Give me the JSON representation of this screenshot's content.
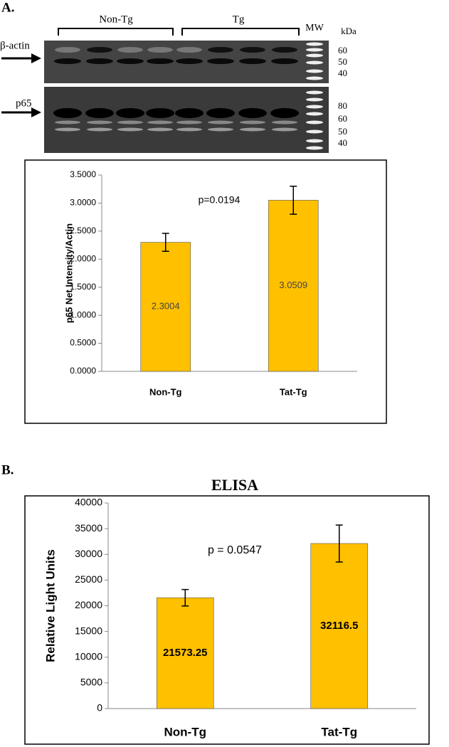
{
  "panels": {
    "a": "A.",
    "b": "B."
  },
  "blot": {
    "groups": [
      "Non-Tg",
      "Tg"
    ],
    "mw_label": "MW",
    "unit": "kDa",
    "rows": [
      {
        "label": "β-actin",
        "markers": [
          "60",
          "50",
          "40"
        ]
      },
      {
        "label": "p65",
        "markers": [
          "80",
          "60",
          "50",
          "40"
        ]
      }
    ]
  },
  "chart_data": [
    {
      "type": "bar",
      "ylabel": "p65 Net Intensity/Actin",
      "annotation": "p=0.0194",
      "categories": [
        "Non-Tg",
        "Tat-Tg"
      ],
      "values": [
        2.3004,
        3.0509
      ],
      "errors": [
        0.16,
        0.25
      ],
      "color": "#ffc000",
      "ylim": [
        0,
        3.5
      ],
      "yticks": [
        {
          "value": 0,
          "label": "0.0000"
        },
        {
          "value": 0.5,
          "label": "0.5000"
        },
        {
          "value": 1,
          "label": "1.0000"
        },
        {
          "value": 1.5,
          "label": "1.5000"
        },
        {
          "value": 2,
          "label": "2.0000"
        },
        {
          "value": 2.5,
          "label": "2.5000"
        },
        {
          "value": 3,
          "label": "3.0000"
        },
        {
          "value": 3.5,
          "label": "3.5000"
        }
      ]
    },
    {
      "type": "bar",
      "title": "ELISA",
      "ylabel": "Relative Light Units",
      "annotation": "p = 0.0547",
      "categories": [
        "Non-Tg",
        "Tat-Tg"
      ],
      "values": [
        21573.25,
        32116.5
      ],
      "errors": [
        1600,
        3600
      ],
      "color": "#ffc000",
      "ylim": [
        0,
        40000
      ],
      "yticks": [
        0,
        5000,
        10000,
        15000,
        20000,
        25000,
        30000,
        35000,
        40000
      ]
    }
  ]
}
